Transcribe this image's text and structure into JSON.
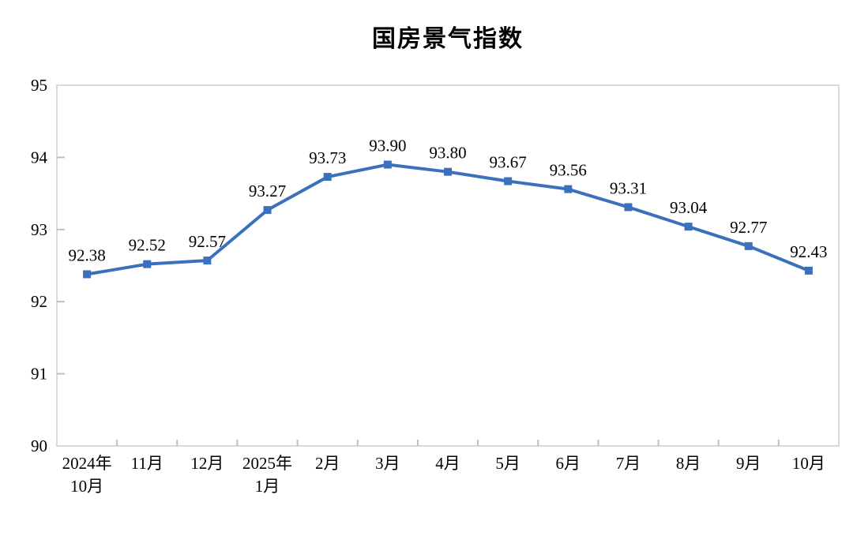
{
  "chart_data": {
    "type": "line",
    "title": "国房景气指数",
    "categories": [
      "2024年\n10月",
      "11月",
      "12月",
      "2025年\n1月",
      "2月",
      "3月",
      "4月",
      "5月",
      "6月",
      "7月",
      "8月",
      "9月",
      "10月"
    ],
    "values": [
      92.38,
      92.52,
      92.57,
      93.27,
      93.73,
      93.9,
      93.8,
      93.67,
      93.56,
      93.31,
      93.04,
      92.77,
      92.43
    ],
    "data_labels": [
      "92.38",
      "92.52",
      "92.57",
      "93.27",
      "93.73",
      "93.90",
      "93.80",
      "93.67",
      "93.56",
      "93.31",
      "93.04",
      "92.77",
      "92.43"
    ],
    "xlabel": "",
    "ylabel": "",
    "ylim": [
      90,
      95
    ],
    "yticks": [
      90,
      91,
      92,
      93,
      94,
      95
    ],
    "grid": false,
    "legend": "none",
    "marker": "square",
    "colors": {
      "line": "#3A70BC",
      "marker": "#3A70BC",
      "border": "#D9D9D9",
      "tick": "#BFBFBF",
      "text": "#000000",
      "background": "#FFFFFF"
    }
  }
}
